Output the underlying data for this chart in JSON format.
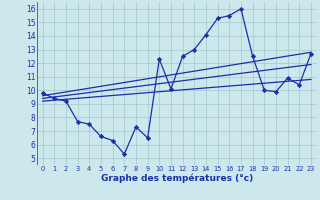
{
  "xlabel": "Graphe des températures (°c)",
  "xlim": [
    -0.5,
    23.5
  ],
  "ylim": [
    4.5,
    16.5
  ],
  "yticks": [
    5,
    6,
    7,
    8,
    9,
    10,
    11,
    12,
    13,
    14,
    15,
    16
  ],
  "xticks": [
    0,
    1,
    2,
    3,
    4,
    5,
    6,
    7,
    8,
    9,
    10,
    11,
    12,
    13,
    14,
    15,
    16,
    17,
    18,
    19,
    20,
    21,
    22,
    23
  ],
  "bg_color": "#cce8ec",
  "grid_color": "#a8cdd0",
  "line_color": "#1a2faa",
  "series": {
    "actual": {
      "x": [
        0,
        1,
        2,
        3,
        4,
        5,
        6,
        7,
        8,
        9,
        10,
        11,
        12,
        13,
        14,
        15,
        16,
        17,
        18,
        19,
        20,
        21,
        22,
        23
      ],
      "y": [
        9.8,
        9.4,
        9.2,
        7.7,
        7.5,
        6.6,
        6.3,
        5.3,
        7.3,
        6.5,
        12.3,
        10.1,
        12.5,
        13.0,
        14.1,
        15.3,
        15.5,
        16.0,
        12.5,
        10.0,
        9.9,
        10.9,
        10.4,
        12.7
      ]
    },
    "line1": {
      "x": [
        0,
        23
      ],
      "y": [
        9.6,
        12.8
      ]
    },
    "line2": {
      "x": [
        0,
        23
      ],
      "y": [
        9.4,
        11.9
      ]
    },
    "line3": {
      "x": [
        0,
        23
      ],
      "y": [
        9.2,
        10.8
      ]
    }
  }
}
